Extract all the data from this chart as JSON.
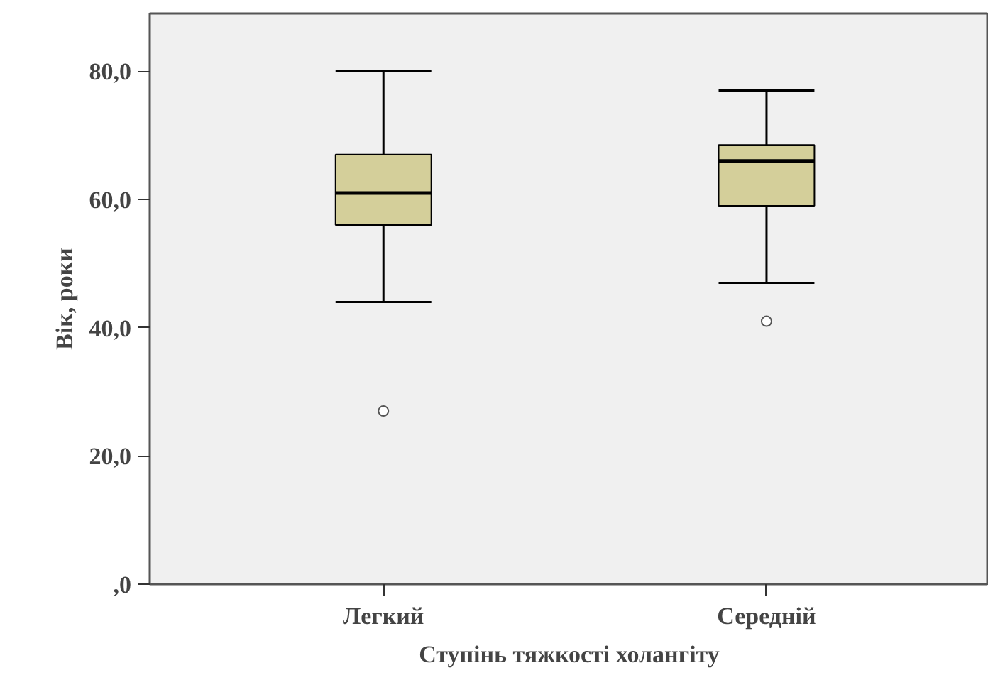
{
  "chart_data": {
    "type": "box",
    "xlabel": "Ступінь тяжкості холангіту",
    "ylabel": "Вік, роки",
    "categories": [
      "Легкий",
      "Середній"
    ],
    "boxes": [
      {
        "low": 44,
        "q1": 56,
        "median": 61,
        "q3": 67,
        "high": 80,
        "outliers": [
          27
        ]
      },
      {
        "low": 47,
        "q1": 59,
        "median": 66,
        "q3": 68.5,
        "high": 77,
        "outliers": [
          41
        ]
      }
    ],
    "color": "#d4cf9a",
    "ylim": [
      0,
      89
    ],
    "yticks": [
      {
        "value": 0,
        "label": ",0"
      },
      {
        "value": 20,
        "label": "20,0"
      },
      {
        "value": 40,
        "label": "40,0"
      },
      {
        "value": 60,
        "label": "60,0"
      },
      {
        "value": 80,
        "label": "80,0"
      }
    ],
    "grid": false
  }
}
